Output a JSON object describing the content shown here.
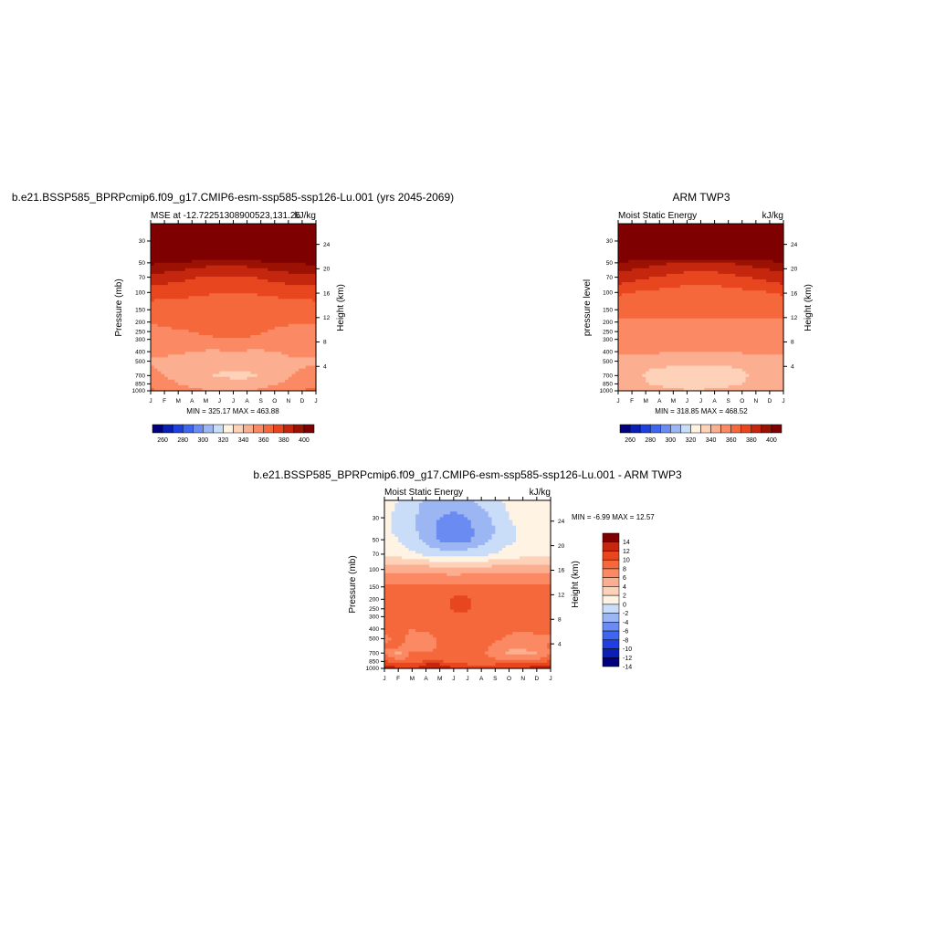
{
  "colors": {
    "abs_scale": [
      "#00007d",
      "#0a1fb4",
      "#1f3fe0",
      "#3f66ee",
      "#6a8cf2",
      "#9cb6f4",
      "#c9dcf8",
      "#fff3e4",
      "#fdd2b8",
      "#fcae90",
      "#fb8a64",
      "#f5683c",
      "#e8461e",
      "#c4270e",
      "#9b1204",
      "#7f0000"
    ],
    "diff_scale": [
      "#00007d",
      "#0a1fb4",
      "#1f3fe0",
      "#3f66ee",
      "#6a8cf2",
      "#9cb6f4",
      "#c9dcf8",
      "#fff3e4",
      "#fdd2b8",
      "#fcae90",
      "#fb8a64",
      "#f5683c",
      "#e8461e",
      "#c4270e",
      "#7f0000"
    ]
  },
  "chart_data": [
    {
      "type": "heatmap",
      "id": "model",
      "title": "b.e21.BSSP585_BPRPcmip6.f09_g17.CMIP6-esm-ssp585-ssp126-Lu.001 (yrs 2045-2069)",
      "left_subtitle": "MSE at -12.72251308900523,131.25",
      "right_subtitle": "kJ/kg",
      "ylabel": "Pressure (mb)",
      "right_axis_label": "Height (km)",
      "x_ticks": [
        "J",
        "F",
        "M",
        "A",
        "M",
        "J",
        "J",
        "A",
        "S",
        "O",
        "N",
        "D",
        "J"
      ],
      "y_ticks": [
        "30",
        "50",
        "70",
        "100",
        "150",
        "200",
        "250",
        "300",
        "400",
        "500",
        "700",
        "850",
        "1000"
      ],
      "height_ticks": [
        "24",
        "20",
        "16",
        "12",
        "8",
        "4"
      ],
      "y_scale": "log pressure",
      "ylim": [
        1000,
        20
      ],
      "stats_text": "MIN = 325.17 MAX = 463.88",
      "colorbar_labels": [
        "260",
        "280",
        "300",
        "320",
        "340",
        "360",
        "380",
        "400"
      ],
      "pressure_levels": [
        20,
        30,
        40,
        50,
        60,
        70,
        85,
        100,
        125,
        150,
        200,
        250,
        300,
        400,
        500,
        600,
        700,
        850,
        925,
        1000
      ],
      "values": [
        [
          463,
          463,
          463,
          463,
          463,
          463,
          463,
          463,
          463,
          463,
          463,
          463,
          463
        ],
        [
          430,
          430,
          430,
          430,
          430,
          430,
          430,
          430,
          430,
          430,
          430,
          430,
          430
        ],
        [
          412,
          412,
          412,
          412,
          412,
          412,
          412,
          412,
          412,
          412,
          412,
          412,
          412
        ],
        [
          392,
          390,
          388,
          386,
          384,
          383,
          383,
          384,
          386,
          388,
          390,
          391,
          392
        ],
        [
          384,
          382,
          380,
          378,
          376,
          375,
          375,
          376,
          378,
          380,
          382,
          383,
          384
        ],
        [
          377,
          375,
          373,
          371,
          369,
          368,
          368,
          369,
          371,
          373,
          375,
          376,
          377
        ],
        [
          370,
          369,
          368,
          366,
          364,
          363,
          363,
          364,
          366,
          368,
          369,
          370,
          370
        ],
        [
          365,
          364,
          363,
          362,
          361,
          360,
          360,
          360,
          361,
          362,
          363,
          364,
          365
        ],
        [
          359,
          359,
          358,
          358,
          358,
          358,
          358,
          358,
          358,
          358,
          358,
          359,
          359
        ],
        [
          356,
          356,
          356,
          356,
          357,
          357,
          357,
          357,
          357,
          356,
          356,
          356,
          356
        ],
        [
          351,
          352,
          353,
          354,
          355,
          356,
          357,
          356,
          354,
          352,
          351,
          351,
          351
        ],
        [
          347,
          348,
          349,
          350,
          352,
          354,
          356,
          354,
          351,
          349,
          348,
          347,
          347
        ],
        [
          344,
          345,
          346,
          347,
          348,
          349,
          350,
          349,
          347,
          345,
          344,
          344,
          344
        ],
        [
          341,
          341,
          341,
          340,
          339,
          339,
          339,
          339,
          339,
          340,
          341,
          341,
          341
        ],
        [
          339,
          339,
          338,
          336,
          335,
          334,
          334,
          334,
          335,
          337,
          339,
          339,
          339
        ],
        [
          341,
          339,
          337,
          335,
          333,
          331,
          331,
          331,
          333,
          336,
          338,
          340,
          341
        ],
        [
          343,
          340,
          337,
          334,
          331,
          329,
          328,
          328,
          331,
          335,
          339,
          342,
          343
        ],
        [
          346,
          343,
          340,
          337,
          335,
          334,
          333,
          334,
          336,
          339,
          342,
          345,
          346
        ],
        [
          349,
          346,
          343,
          340,
          338,
          337,
          336,
          337,
          339,
          342,
          345,
          348,
          349
        ],
        [
          352,
          349,
          346,
          343,
          341,
          340,
          339,
          340,
          342,
          345,
          348,
          351,
          352
        ]
      ]
    },
    {
      "type": "heatmap",
      "id": "obs",
      "title": "ARM TWP3",
      "left_subtitle": "Moist Static Energy",
      "right_subtitle": "kJ/kg",
      "ylabel": "pressure level",
      "right_axis_label": "Height (km)",
      "x_ticks": [
        "J",
        "F",
        "M",
        "A",
        "M",
        "J",
        "J",
        "A",
        "S",
        "O",
        "N",
        "D",
        "J"
      ],
      "y_ticks": [
        "30",
        "50",
        "70",
        "100",
        "150",
        "200",
        "250",
        "300",
        "400",
        "500",
        "700",
        "850",
        "1000"
      ],
      "height_ticks": [
        "24",
        "20",
        "16",
        "12",
        "8",
        "4"
      ],
      "y_scale": "log pressure",
      "ylim": [
        1000,
        20
      ],
      "stats_text": "MIN = 318.85 MAX = 468.52",
      "colorbar_labels": [
        "260",
        "280",
        "300",
        "320",
        "340",
        "360",
        "380",
        "400"
      ],
      "pressure_levels": [
        20,
        30,
        40,
        50,
        60,
        70,
        85,
        100,
        125,
        150,
        200,
        250,
        300,
        400,
        500,
        600,
        700,
        850,
        925,
        1000
      ],
      "values": [
        [
          468,
          468,
          468,
          468,
          468,
          468,
          468,
          468,
          468,
          468,
          468,
          468,
          468
        ],
        [
          432,
          432,
          432,
          432,
          432,
          432,
          432,
          432,
          432,
          432,
          432,
          432,
          432
        ],
        [
          408,
          408,
          408,
          408,
          408,
          408,
          408,
          408,
          408,
          408,
          408,
          408,
          408
        ],
        [
          388,
          386,
          384,
          382,
          380,
          378,
          377,
          378,
          380,
          382,
          384,
          386,
          388
        ],
        [
          381,
          379,
          377,
          375,
          373,
          371,
          370,
          371,
          373,
          375,
          377,
          379,
          381
        ],
        [
          375,
          373,
          371,
          369,
          367,
          366,
          365,
          366,
          367,
          369,
          371,
          373,
          375
        ],
        [
          369,
          367,
          365,
          363,
          361,
          360,
          360,
          360,
          361,
          363,
          365,
          367,
          369
        ],
        [
          362,
          360,
          358,
          357,
          356,
          355,
          355,
          355,
          356,
          357,
          358,
          360,
          362
        ],
        [
          356,
          355,
          355,
          355,
          355,
          355,
          355,
          355,
          355,
          355,
          355,
          355,
          356
        ],
        [
          353,
          353,
          353,
          353,
          353,
          353,
          353,
          353,
          353,
          353,
          353,
          353,
          353
        ],
        [
          349,
          349,
          349,
          349,
          349,
          349,
          349,
          349,
          349,
          349,
          349,
          349,
          349
        ],
        [
          346,
          346,
          346,
          346,
          346,
          346,
          346,
          346,
          346,
          346,
          346,
          346,
          346
        ],
        [
          344,
          344,
          344,
          344,
          344,
          344,
          344,
          344,
          344,
          344,
          344,
          344,
          344
        ],
        [
          341,
          341,
          341,
          341,
          340,
          340,
          340,
          340,
          340,
          341,
          341,
          341,
          341
        ],
        [
          338,
          337,
          336,
          335,
          334,
          334,
          334,
          334,
          334,
          335,
          337,
          338,
          338
        ],
        [
          336,
          334,
          331,
          329,
          328,
          327,
          327,
          327,
          328,
          330,
          334,
          336,
          336
        ],
        [
          334,
          332,
          329,
          326,
          324,
          323,
          322,
          323,
          325,
          328,
          332,
          334,
          334
        ],
        [
          336,
          334,
          331,
          328,
          326,
          324,
          324,
          325,
          327,
          330,
          334,
          336,
          336
        ],
        [
          338,
          336,
          334,
          331,
          329,
          328,
          328,
          329,
          331,
          333,
          336,
          338,
          338
        ],
        [
          340,
          338,
          336,
          334,
          332,
          331,
          331,
          332,
          334,
          336,
          338,
          340,
          340
        ]
      ]
    },
    {
      "type": "heatmap",
      "id": "diff",
      "title": "b.e21.BSSP585_BPRPcmip6.f09_g17.CMIP6-esm-ssp585-ssp126-Lu.001 - ARM TWP3",
      "left_subtitle": "Moist Static Energy",
      "right_subtitle": "kJ/kg",
      "ylabel": "Pressure (mb)",
      "right_axis_label": "Height (km)",
      "x_ticks": [
        "J",
        "F",
        "M",
        "A",
        "M",
        "J",
        "J",
        "A",
        "S",
        "O",
        "N",
        "D",
        "J"
      ],
      "y_ticks": [
        "30",
        "50",
        "70",
        "100",
        "150",
        "200",
        "250",
        "300",
        "400",
        "500",
        "700",
        "850",
        "1000"
      ],
      "height_ticks": [
        "24",
        "20",
        "16",
        "12",
        "8",
        "4"
      ],
      "y_scale": "log pressure",
      "ylim": [
        1000,
        20
      ],
      "stats_text": "MIN =  -6.99 MAX =  12.57",
      "colorbar_labels": [
        "14",
        "12",
        "10",
        "8",
        "6",
        "4",
        "2",
        "0",
        "-2",
        "-4",
        "-6",
        "-8",
        "-10",
        "-12",
        "-14"
      ],
      "pressure_levels": [
        20,
        30,
        40,
        50,
        60,
        70,
        85,
        100,
        125,
        150,
        200,
        250,
        300,
        400,
        500,
        600,
        700,
        850,
        925,
        1000
      ],
      "values": [
        [
          -1.5,
          -2,
          -3,
          -4.5,
          -5,
          -5,
          -4.5,
          -3.5,
          -2.5,
          -1.5,
          -1,
          -1,
          -1.5
        ],
        [
          -1.5,
          -2.5,
          -3.5,
          -5,
          -6,
          -6.5,
          -6,
          -5,
          -3.5,
          -2,
          -1.5,
          -1,
          -1.5
        ],
        [
          -1.5,
          -2.5,
          -3.5,
          -5,
          -6.5,
          -7,
          -6.5,
          -5.5,
          -4,
          -2.5,
          -1.5,
          -1,
          -1.5
        ],
        [
          -1.2,
          -2,
          -3,
          -4.5,
          -6.5,
          -7,
          -6.5,
          -5,
          -3.5,
          -2.5,
          -1.5,
          -1,
          -1.2
        ],
        [
          -0.8,
          -1.5,
          -2.5,
          -3.5,
          -4.5,
          -5,
          -4.5,
          -3.5,
          -2.5,
          -1.8,
          -1,
          -0.8,
          -0.8
        ],
        [
          -0.5,
          -1,
          -1.5,
          -2.5,
          -3,
          -3.5,
          -3,
          -2.5,
          -2,
          -1.5,
          -1,
          -0.5,
          -0.5
        ],
        [
          1.5,
          1.5,
          1,
          1,
          0.5,
          0.5,
          0.5,
          0.5,
          1,
          1,
          1.5,
          1.5,
          1.5
        ],
        [
          3.2,
          3.2,
          3,
          3,
          3,
          3,
          3,
          3,
          3,
          3,
          3.2,
          3.2,
          3.2
        ],
        [
          5,
          5,
          5,
          5,
          5,
          4.8,
          5,
          5,
          5,
          5,
          5,
          5,
          5
        ],
        [
          6.5,
          6.5,
          6.5,
          6.5,
          6.5,
          6.5,
          6.5,
          6.5,
          6.5,
          6.5,
          6.5,
          6.5,
          6.5
        ],
        [
          6.5,
          6.5,
          6.5,
          6.5,
          7,
          8.5,
          8.5,
          7,
          6.5,
          6.5,
          6.5,
          6.5,
          6.5
        ],
        [
          6.5,
          6.5,
          6.5,
          6.5,
          7,
          8.5,
          8.5,
          7,
          6.5,
          6.5,
          6.5,
          6.5,
          6.5
        ],
        [
          6.5,
          6.5,
          6.5,
          6.5,
          6.5,
          7,
          7,
          6.5,
          6.5,
          6.5,
          6.5,
          6.5,
          6.5
        ],
        [
          6.5,
          6.5,
          6,
          6.5,
          6.5,
          6.5,
          6.5,
          6.5,
          6.5,
          6.5,
          6.5,
          6.5,
          6.5
        ],
        [
          5.5,
          6.5,
          5.5,
          5,
          6.5,
          6.5,
          6.5,
          6.5,
          6.5,
          5.5,
          5,
          5.5,
          5.5
        ],
        [
          6.5,
          6.5,
          5,
          4.5,
          6.5,
          6.5,
          6.5,
          6.5,
          5.5,
          4.5,
          4.5,
          5.5,
          6.5
        ],
        [
          5.5,
          3.5,
          6.5,
          6.5,
          6.5,
          6.5,
          6.5,
          6.5,
          5,
          3.5,
          3,
          4,
          5.5
        ],
        [
          8.5,
          6.5,
          6.5,
          8.5,
          8.5,
          6.5,
          6.5,
          6.5,
          6.5,
          6.5,
          6.5,
          6.5,
          8.5
        ],
        [
          10.5,
          9.5,
          8.5,
          10.5,
          10.5,
          9,
          8.5,
          8,
          8.5,
          9,
          9,
          10,
          10.5
        ],
        [
          10.5,
          10,
          9.5,
          11,
          11,
          10,
          9.5,
          9,
          9.5,
          10,
          10,
          10.5,
          10.5
        ]
      ]
    }
  ]
}
